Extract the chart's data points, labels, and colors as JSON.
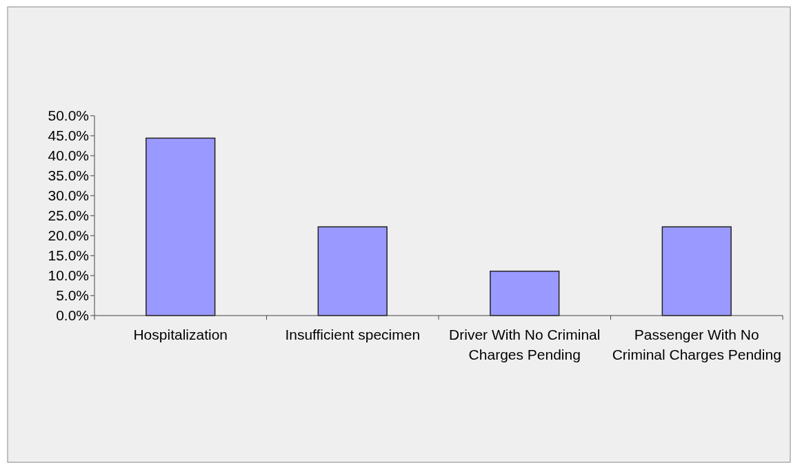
{
  "chart_data": {
    "type": "bar",
    "categories": [
      "Hospitalization",
      "Insufficient specimen",
      "Driver With No Criminal Charges Pending",
      "Passenger With No Criminal Charges Pending"
    ],
    "values": [
      44.4,
      22.2,
      11.1,
      22.2
    ],
    "color": "#9999ff",
    "ylim": [
      0,
      50
    ],
    "yticks": [
      {
        "value": 0,
        "label": "0.0%"
      },
      {
        "value": 5,
        "label": "5.0%"
      },
      {
        "value": 10,
        "label": "10.0%"
      },
      {
        "value": 15,
        "label": "15.0%"
      },
      {
        "value": 20,
        "label": "20.0%"
      },
      {
        "value": 25,
        "label": "25.0%"
      },
      {
        "value": 30,
        "label": "30.0%"
      },
      {
        "value": 35,
        "label": "35.0%"
      },
      {
        "value": 40,
        "label": "40.0%"
      },
      {
        "value": 45,
        "label": "45.0%"
      },
      {
        "value": 50,
        "label": "50.0%"
      }
    ],
    "grid": false
  }
}
